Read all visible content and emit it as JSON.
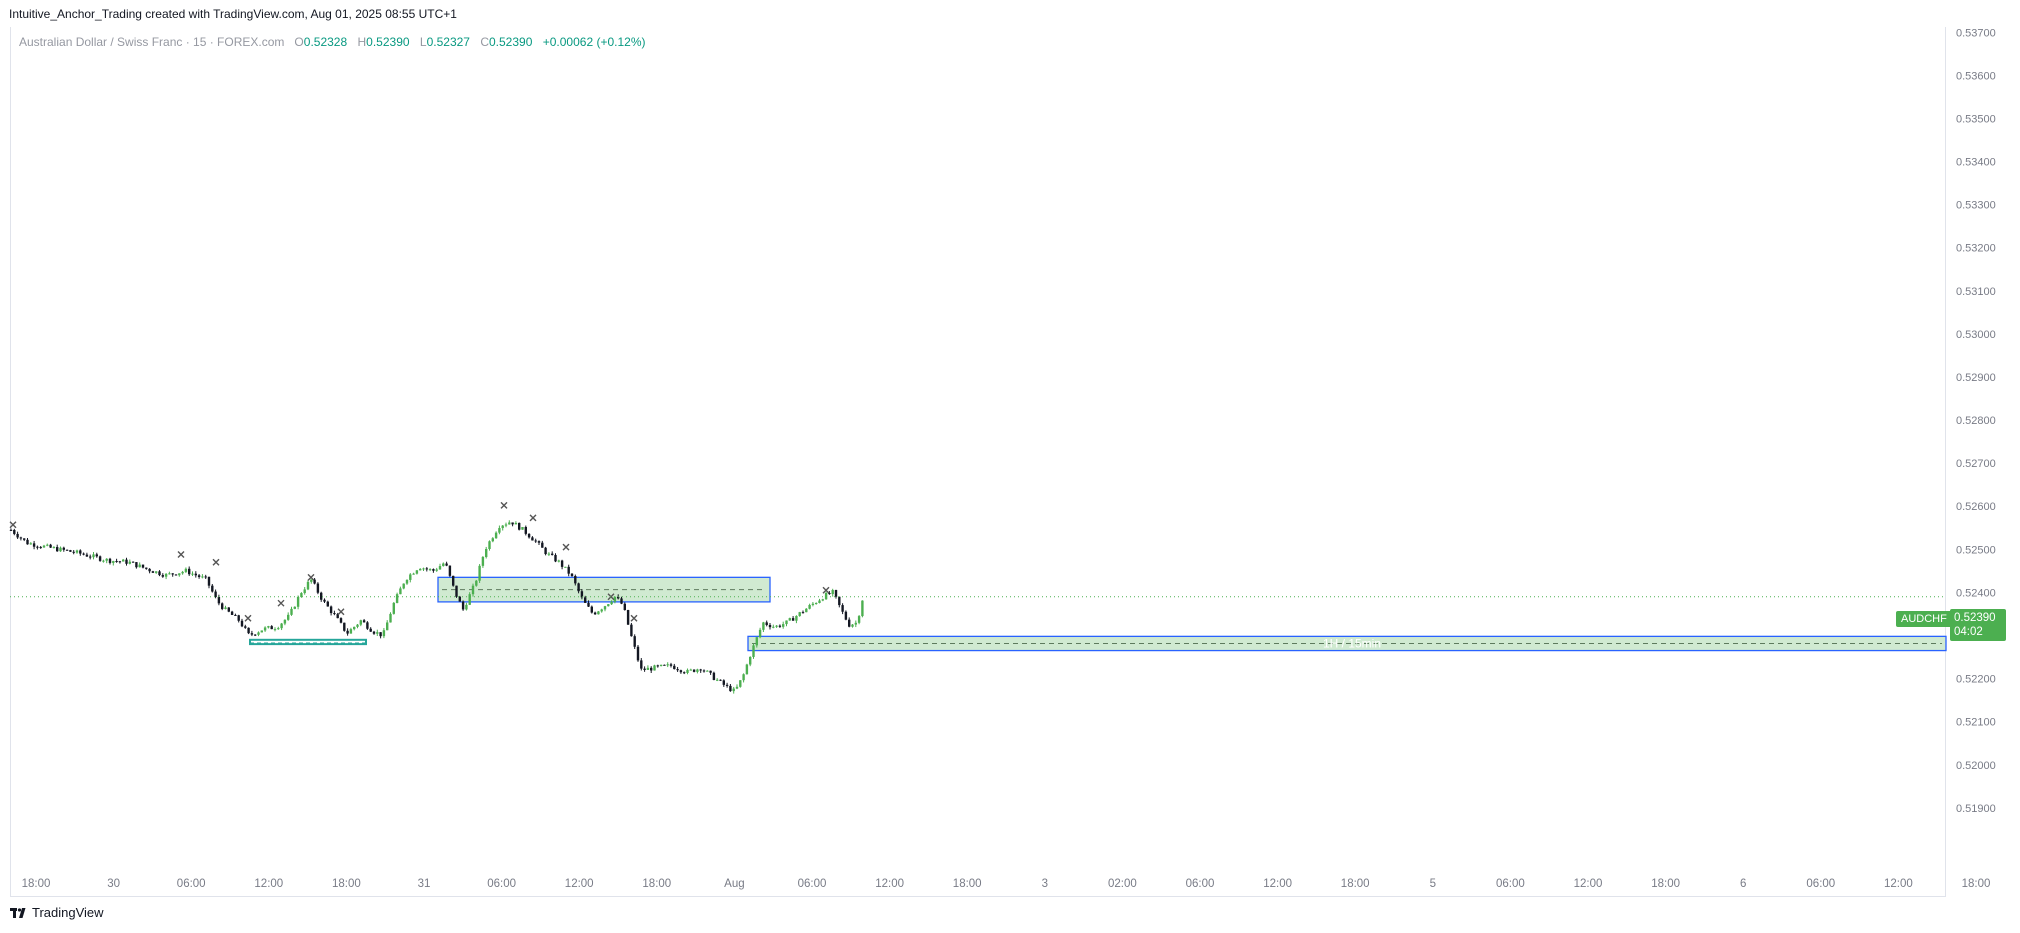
{
  "header": {
    "caption": "Intuitive_Anchor_Trading created with TradingView.com, Aug 01, 2025 08:55 UTC+1"
  },
  "legend": {
    "instrument": "Australian Dollar / Swiss Franc · 15 · FOREX.com",
    "open_label": "O",
    "open": "0.52328",
    "high_label": "H",
    "high": "0.52390",
    "low_label": "L",
    "low": "0.52327",
    "close_label": "C",
    "close": "0.52390",
    "change": "+0.00062 (+0.12%)"
  },
  "price_tag": {
    "symbol": "AUDCHF",
    "price": "0.52390",
    "countdown": "04:02"
  },
  "footer": {
    "logo_icon": "tradingview-logo-icon",
    "brand": "TradingView"
  },
  "colors": {
    "up": "#4caf50",
    "down": "#131722",
    "zone_fill": "#c8e6c9",
    "zone_border": "#2962ff",
    "grid": "#f0f3fa"
  },
  "chart_data": {
    "type": "candlestick",
    "symbol": "AUDCHF",
    "timeframe": "15",
    "price_axis": {
      "ticks": [
        "0.51900",
        "0.52000",
        "0.52100",
        "0.52200",
        "0.52300",
        "0.52400",
        "0.52500",
        "0.52600",
        "0.52700",
        "0.52800",
        "0.52900",
        "0.53000",
        "0.53100",
        "0.53200",
        "0.53300",
        "0.53400",
        "0.53500",
        "0.53600",
        "0.53700"
      ],
      "range": [
        0.5183,
        0.5371
      ]
    },
    "time_axis": {
      "ticks": [
        "18:00",
        "30",
        "06:00",
        "12:00",
        "18:00",
        "31",
        "06:00",
        "12:00",
        "18:00",
        "Aug",
        "06:00",
        "12:00",
        "18:00",
        "3",
        "02:00",
        "06:00",
        "12:00",
        "18:00",
        "5",
        "06:00",
        "12:00",
        "18:00",
        "6",
        "06:00",
        "12:00",
        "18:00"
      ]
    },
    "price_path": [
      [
        0,
        0.52545
      ],
      [
        16,
        0.52515
      ],
      [
        36,
        0.52505
      ],
      [
        66,
        0.52492
      ],
      [
        96,
        0.52475
      ],
      [
        118,
        0.5247
      ],
      [
        135,
        0.52455
      ],
      [
        155,
        0.5244
      ],
      [
        175,
        0.5245
      ],
      [
        195,
        0.5243
      ],
      [
        206,
        0.5238
      ],
      [
        214,
        0.5236
      ],
      [
        228,
        0.52335
      ],
      [
        238,
        0.523
      ],
      [
        252,
        0.52315
      ],
      [
        266,
        0.5232
      ],
      [
        278,
        0.52345
      ],
      [
        290,
        0.524
      ],
      [
        300,
        0.5243
      ],
      [
        312,
        0.5238
      ],
      [
        324,
        0.52345
      ],
      [
        336,
        0.52305
      ],
      [
        350,
        0.52335
      ],
      [
        362,
        0.5231
      ],
      [
        372,
        0.523
      ],
      [
        382,
        0.5237
      ],
      [
        394,
        0.5243
      ],
      [
        408,
        0.5246
      ],
      [
        422,
        0.5245
      ],
      [
        434,
        0.5247
      ],
      [
        444,
        0.524
      ],
      [
        452,
        0.5236
      ],
      [
        464,
        0.5242
      ],
      [
        474,
        0.525
      ],
      [
        488,
        0.52555
      ],
      [
        500,
        0.52565
      ],
      [
        512,
        0.52545
      ],
      [
        524,
        0.5252
      ],
      [
        536,
        0.5249
      ],
      [
        548,
        0.5247
      ],
      [
        560,
        0.5244
      ],
      [
        572,
        0.5238
      ],
      [
        582,
        0.5235
      ],
      [
        594,
        0.5237
      ],
      [
        604,
        0.5239
      ],
      [
        612,
        0.5237
      ],
      [
        620,
        0.523
      ],
      [
        630,
        0.5222
      ],
      [
        644,
        0.52225
      ],
      [
        660,
        0.5223
      ],
      [
        676,
        0.52215
      ],
      [
        690,
        0.52225
      ],
      [
        704,
        0.522
      ],
      [
        716,
        0.5218
      ],
      [
        724,
        0.5217
      ],
      [
        732,
        0.52205
      ],
      [
        740,
        0.5226
      ],
      [
        752,
        0.5233
      ],
      [
        764,
        0.5232
      ],
      [
        776,
        0.5233
      ],
      [
        788,
        0.5235
      ],
      [
        800,
        0.5237
      ],
      [
        812,
        0.5239
      ],
      [
        822,
        0.524
      ],
      [
        830,
        0.5236
      ],
      [
        838,
        0.52325
      ],
      [
        846,
        0.5233
      ],
      [
        852,
        0.5239
      ]
    ],
    "zones": [
      {
        "label": "",
        "from_bar": 240,
        "to_bar": 356,
        "top": 0.5229,
        "bottom": 0.5228,
        "style": "teal-line"
      },
      {
        "label": "",
        "from_bar": 428,
        "to_bar": 760,
        "top": 0.52435,
        "bottom": 0.52378,
        "style": "box"
      },
      {
        "label": "1H / 15min",
        "from_bar": 738,
        "to_bar": 1936,
        "top": 0.52298,
        "bottom": 0.52265,
        "style": "box"
      }
    ],
    "markers": [
      [
        2,
        0.52557
      ],
      [
        170,
        0.52488
      ],
      [
        205,
        0.5247
      ],
      [
        237,
        0.5234
      ],
      [
        270,
        0.52375
      ],
      [
        300,
        0.52435
      ],
      [
        330,
        0.52355
      ],
      [
        493,
        0.52602
      ],
      [
        522,
        0.52573
      ],
      [
        555,
        0.52505
      ],
      [
        600,
        0.5239
      ],
      [
        623,
        0.5234
      ],
      [
        815,
        0.52405
      ]
    ],
    "last_price": 0.5239,
    "grid": false
  }
}
